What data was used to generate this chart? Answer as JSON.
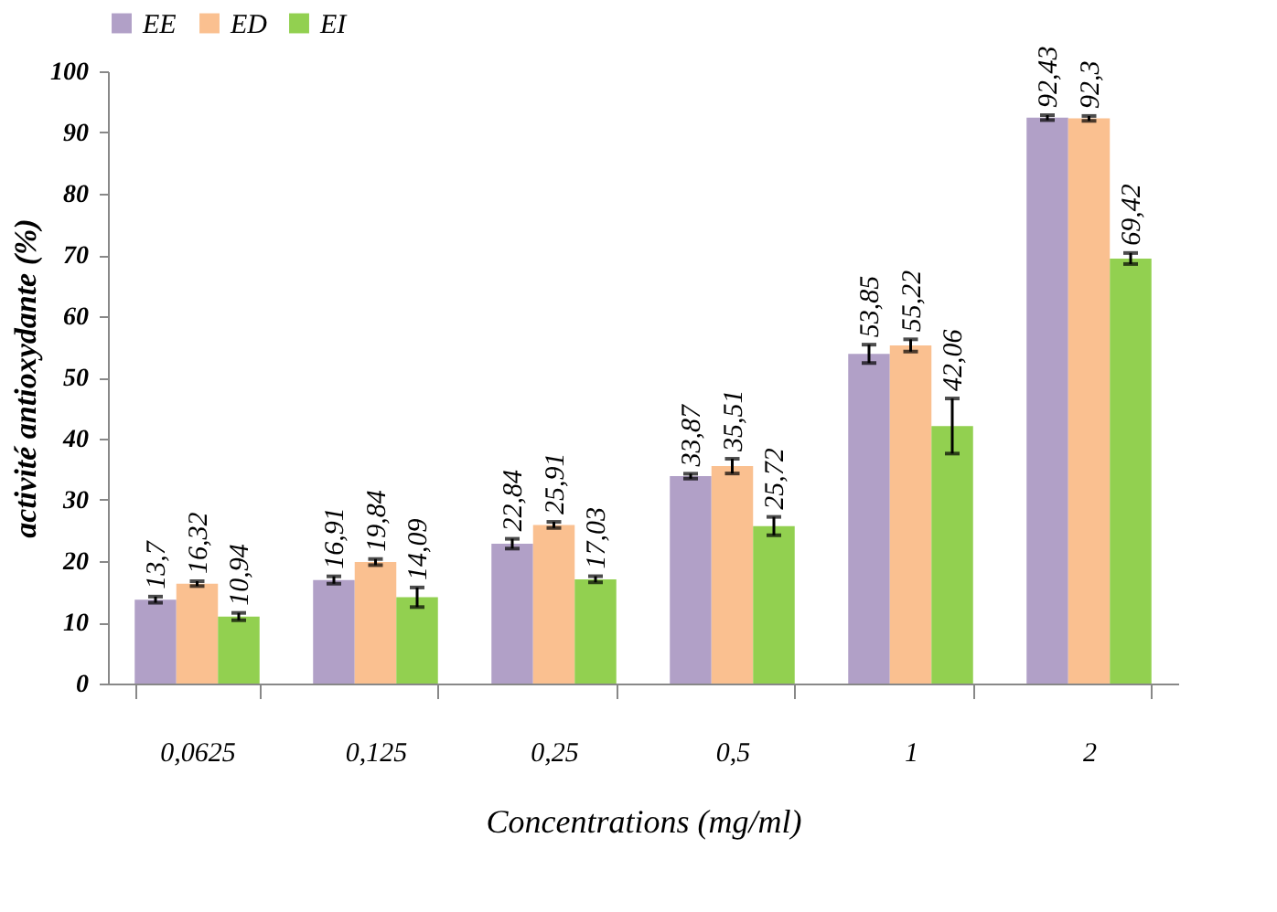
{
  "chart_data": {
    "type": "bar",
    "xlabel": "Concentrations (mg/ml)",
    "ylabel": "activité antioxydante (%)",
    "categories": [
      "0,0625",
      "0,125",
      "0,25",
      "0,5",
      "1",
      "2"
    ],
    "series": [
      {
        "name": "EE",
        "color": "#b1a0c7",
        "values": [
          13.7,
          16.91,
          22.84,
          33.87,
          53.85,
          92.43
        ],
        "errors": [
          0.5,
          0.6,
          0.8,
          0.4,
          1.5,
          0.4
        ],
        "value_labels": [
          "13,7",
          "16,91",
          "22,84",
          "33,87",
          "53,85",
          "92,43"
        ]
      },
      {
        "name": "ED",
        "color": "#fac090",
        "values": [
          16.32,
          19.84,
          25.91,
          35.51,
          55.22,
          92.3
        ],
        "errors": [
          0.4,
          0.5,
          0.5,
          1.2,
          1.0,
          0.4
        ],
        "value_labels": [
          "16,32",
          "19,84",
          "25,91",
          "35,51",
          "55,22",
          "92,3"
        ]
      },
      {
        "name": "EI",
        "color": "#92d050",
        "values": [
          10.94,
          14.09,
          17.03,
          25.72,
          42.06,
          69.42
        ],
        "errors": [
          0.6,
          1.6,
          0.5,
          1.5,
          4.5,
          0.9
        ],
        "value_labels": [
          "10,94",
          "14,09",
          "17,03",
          "25,72",
          "42,06",
          "69,42"
        ]
      }
    ],
    "ylim": [
      0,
      100
    ],
    "yticks": [
      0,
      10,
      20,
      30,
      40,
      50,
      60,
      70,
      80,
      90,
      100
    ],
    "grid": false,
    "legend": "top"
  }
}
